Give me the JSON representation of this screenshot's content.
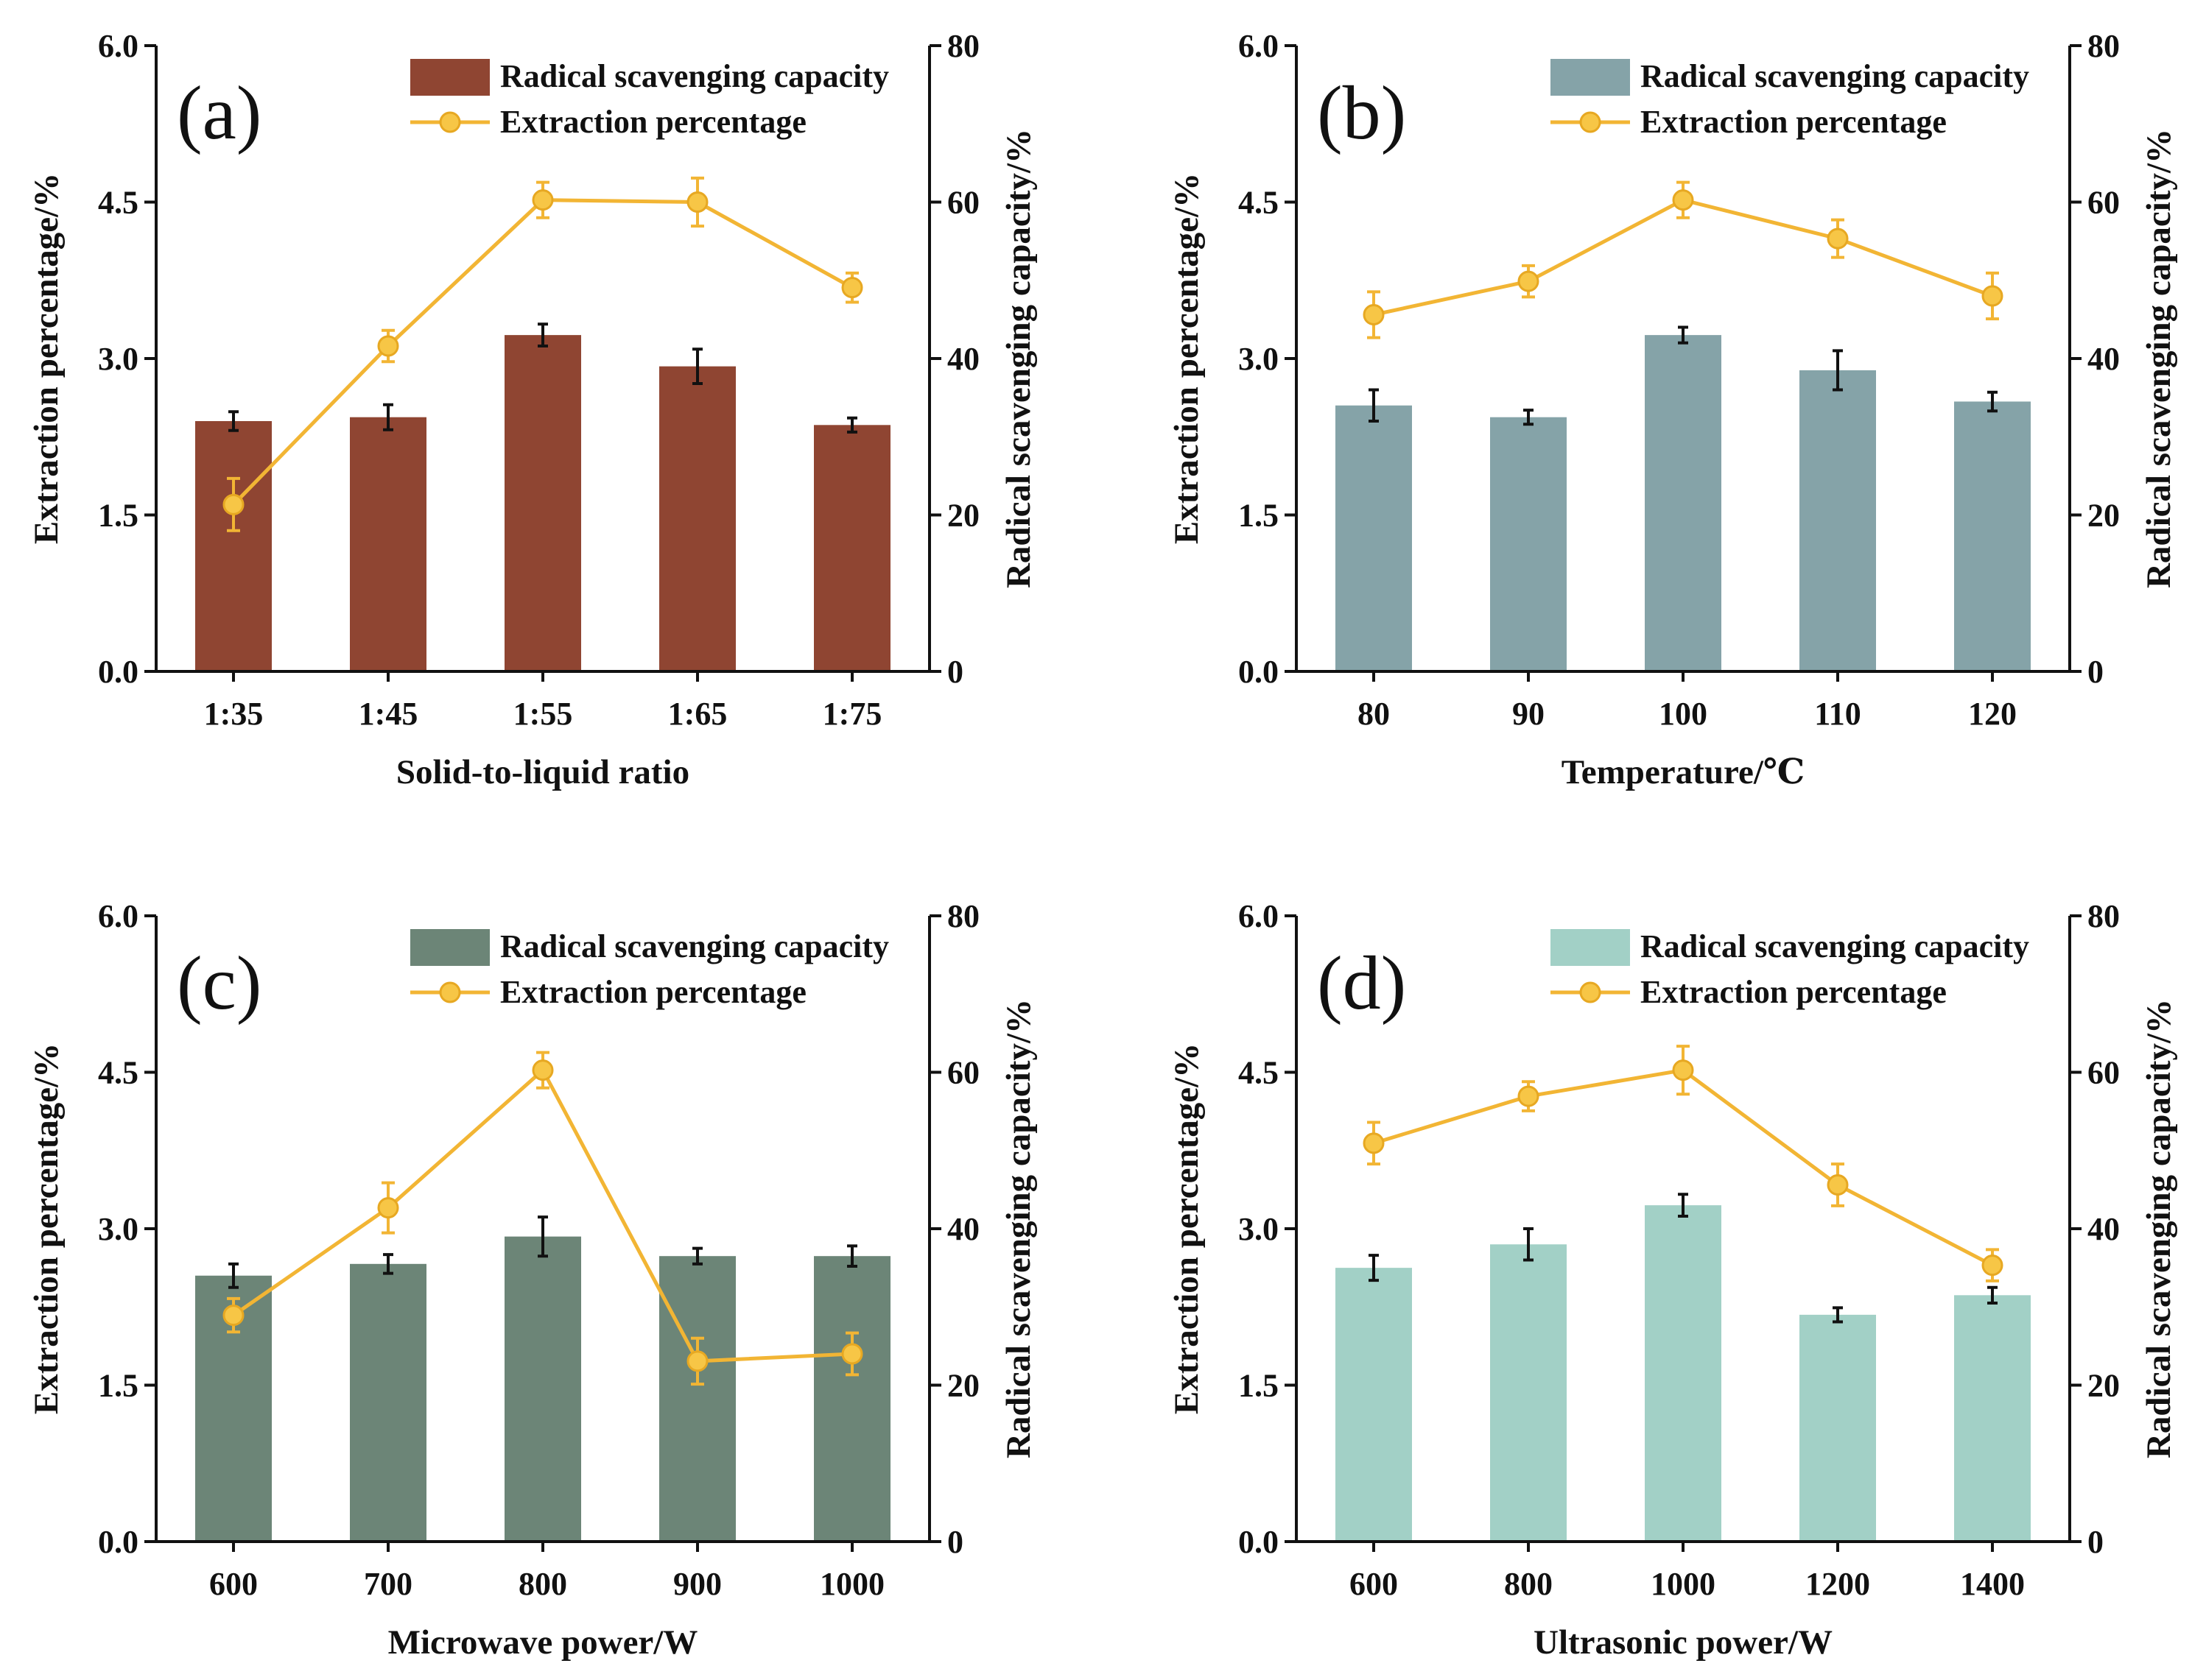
{
  "chart_data": [
    {
      "type": "bar",
      "panel_label": "(a)",
      "xlabel": "Solid-to-liquid ratio",
      "ylabel_left": "Extraction percentage/%",
      "ylabel_right": "Radical scavenging capacity/%",
      "categories": [
        "1:35",
        "1:45",
        "1:55",
        "1:65",
        "1:75"
      ],
      "ylim_left": [
        0,
        6.0
      ],
      "ylim_right": [
        0,
        80
      ],
      "yticks_left": [
        "0.0",
        "1.5",
        "3.0",
        "4.5",
        "6.0"
      ],
      "yticks_right": [
        "0",
        "20",
        "40",
        "60",
        "80"
      ],
      "bar_color": "#8f4532",
      "series": [
        {
          "name": "Radical scavenging capacity",
          "kind": "bar",
          "axis": "right",
          "values": [
            32,
            32.5,
            43,
            39,
            31.5
          ],
          "errors": [
            1.2,
            1.6,
            1.4,
            2.2,
            0.9
          ]
        },
        {
          "name": "Extraction percentage",
          "kind": "line",
          "axis": "left",
          "values": [
            1.6,
            3.12,
            4.52,
            4.5,
            3.68
          ],
          "errors": [
            0.25,
            0.15,
            0.17,
            0.23,
            0.14
          ]
        }
      ],
      "legend": [
        "Radical scavenging capacity",
        "Extraction percentage"
      ]
    },
    {
      "type": "bar",
      "panel_label": "(b)",
      "xlabel": "Temperature/℃",
      "ylabel_left": "Extraction percentage/%",
      "ylabel_right": "Radical scavenging capacity/%",
      "categories": [
        "80",
        "90",
        "100",
        "110",
        "120"
      ],
      "ylim_left": [
        0,
        6.0
      ],
      "ylim_right": [
        0,
        80
      ],
      "yticks_left": [
        "0.0",
        "1.5",
        "3.0",
        "4.5",
        "6.0"
      ],
      "yticks_right": [
        "0",
        "20",
        "40",
        "60",
        "80"
      ],
      "bar_color": "#85a3a8",
      "series": [
        {
          "name": "Radical scavenging capacity",
          "kind": "bar",
          "axis": "right",
          "values": [
            34,
            32.5,
            43,
            38.5,
            34.5
          ],
          "errors": [
            2.0,
            0.9,
            1.0,
            2.5,
            1.2
          ]
        },
        {
          "name": "Extraction percentage",
          "kind": "line",
          "axis": "left",
          "values": [
            3.42,
            3.74,
            4.52,
            4.15,
            3.6
          ],
          "errors": [
            0.22,
            0.15,
            0.17,
            0.18,
            0.22
          ]
        }
      ],
      "legend": [
        "Radical scavenging capacity",
        "Extraction percentage"
      ]
    },
    {
      "type": "bar",
      "panel_label": "(c)",
      "xlabel": "Microwave power/W",
      "ylabel_left": "Extraction percentage/%",
      "ylabel_right": "Radical scavenging capacity/%",
      "categories": [
        "600",
        "700",
        "800",
        "900",
        "1000"
      ],
      "ylim_left": [
        0,
        6.0
      ],
      "ylim_right": [
        0,
        80
      ],
      "yticks_left": [
        "0.0",
        "1.5",
        "3.0",
        "4.5",
        "6.0"
      ],
      "yticks_right": [
        "0",
        "20",
        "40",
        "60",
        "80"
      ],
      "bar_color": "#6c8577",
      "series": [
        {
          "name": "Radical scavenging capacity",
          "kind": "bar",
          "axis": "right",
          "values": [
            34,
            35.5,
            39,
            36.5,
            36.5
          ],
          "errors": [
            1.5,
            1.2,
            2.5,
            1.0,
            1.3
          ]
        },
        {
          "name": "Extraction percentage",
          "kind": "line",
          "axis": "left",
          "values": [
            2.17,
            3.2,
            4.52,
            1.73,
            1.8
          ],
          "errors": [
            0.16,
            0.24,
            0.17,
            0.22,
            0.2
          ]
        }
      ],
      "legend": [
        "Radical scavenging capacity",
        "Extraction percentage"
      ]
    },
    {
      "type": "bar",
      "panel_label": "(d)",
      "xlabel": "Ultrasonic power/W",
      "ylabel_left": "Extraction percentage/%",
      "ylabel_right": "Radical scavenging capacity/%",
      "categories": [
        "600",
        "800",
        "1000",
        "1200",
        "1400"
      ],
      "ylim_left": [
        0,
        6.0
      ],
      "ylim_right": [
        0,
        80
      ],
      "yticks_left": [
        "0.0",
        "1.5",
        "3.0",
        "4.5",
        "6.0"
      ],
      "yticks_right": [
        "0",
        "20",
        "40",
        "60",
        "80"
      ],
      "bar_color": "#a2d0c6",
      "series": [
        {
          "name": "Radical scavenging capacity",
          "kind": "bar",
          "axis": "right",
          "values": [
            35,
            38,
            43,
            29,
            31.5
          ],
          "errors": [
            1.6,
            2.0,
            1.4,
            0.9,
            1.0
          ]
        },
        {
          "name": "Extraction percentage",
          "kind": "line",
          "axis": "left",
          "values": [
            3.82,
            4.27,
            4.52,
            3.42,
            2.65
          ],
          "errors": [
            0.2,
            0.14,
            0.23,
            0.2,
            0.15
          ]
        }
      ],
      "legend": [
        "Radical scavenging capacity",
        "Extraction percentage"
      ]
    }
  ]
}
